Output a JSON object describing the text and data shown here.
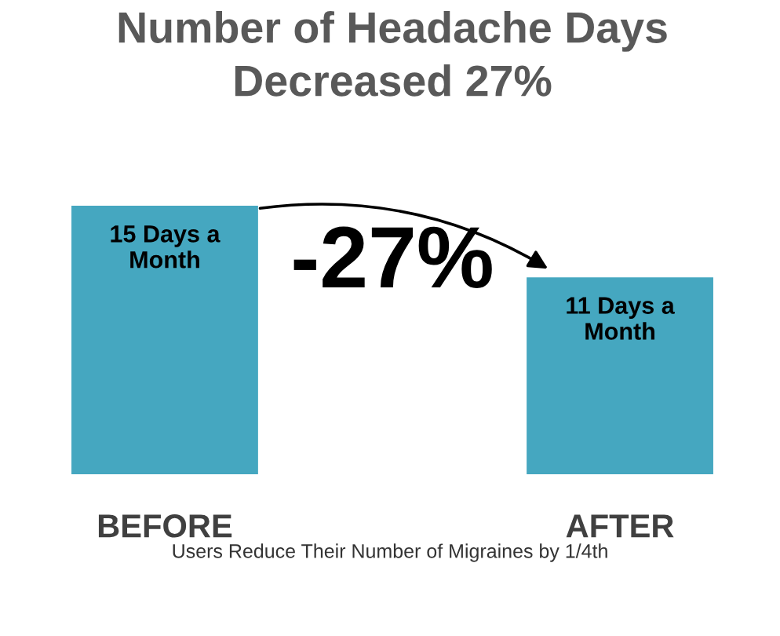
{
  "chart_data": {
    "type": "bar",
    "title": "Number of Headache Days\nDecreased 27%",
    "categories": [
      "BEFORE",
      "AFTER"
    ],
    "values": [
      15,
      11
    ],
    "value_labels": [
      "15 Days a\nMonth",
      "11 Days a\nMonth"
    ],
    "color": "#45a7c0",
    "tick_labels": "x",
    "grid": false,
    "legend": false,
    "annotations": [
      "-27%",
      "Users Reduce Their Number of Migraines by 1/4th"
    ]
  }
}
